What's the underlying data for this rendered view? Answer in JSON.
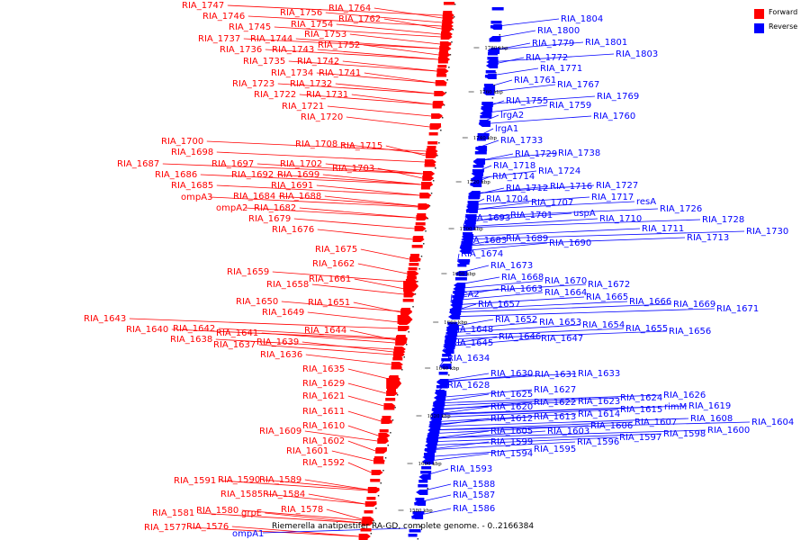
{
  "caption": "Riemerella anatipestifer RA-GD, complete genome. - 0..2166384",
  "legend": [
    {
      "label": "Forward",
      "color": "#ff0000"
    },
    {
      "label": "Reverse",
      "color": "#0000ff"
    }
  ],
  "colors": {
    "forward": "#ff0000",
    "reverse": "#0000ff",
    "backbone": "#888888"
  },
  "ticks": [
    "1780 kbp",
    "1760 kbp",
    "1740 kbp",
    "1720 kbp",
    "1700 kbp",
    "1680 kbp",
    "1660 kbp",
    "1640 kbp",
    "1620 kbp",
    "1600 kbp",
    "1580 kbp"
  ],
  "forward_genes": [
    "RIA_1747",
    "RIA_1764",
    "RIA_1756",
    "RIA_1746",
    "RIA_1762",
    "RIA_1754",
    "RIA_1745",
    "RIA_1753",
    "RIA_1737",
    "RIA_1744",
    "RIA_1752",
    "RIA_1736",
    "RIA_1743",
    "RIA_1735",
    "RIA_1742",
    "RIA_1734",
    "RIA_1741",
    "RIA_1723",
    "RIA_1732",
    "RIA_1722",
    "RIA_1731",
    "RIA_1721",
    "RIA_1720",
    "RIA_1700",
    "RIA_1708",
    "RIA_1715",
    "RIA_1698",
    "RIA_1687",
    "RIA_1697",
    "RIA_1702",
    "RIA_1703",
    "RIA_1686",
    "RIA_1692",
    "RIA_1699",
    "RIA_1685",
    "RIA_1691",
    "ompA3",
    "RIA_1684",
    "RIA_1688",
    "ompA2",
    "RIA_1682",
    "RIA_1679",
    "RIA_1676",
    "RIA_1675",
    "RIA_1662",
    "RIA_1659",
    "RIA_1661",
    "RIA_1658",
    "RIA_1650",
    "RIA_1651",
    "RIA_1649",
    "RIA_1643",
    "RIA_1640",
    "RIA_1642",
    "RIA_1644",
    "RIA_1641",
    "RIA_1638",
    "RIA_1639",
    "RIA_1637",
    "RIA_1636",
    "RIA_1635",
    "RIA_1629",
    "RIA_1621",
    "RIA_1611",
    "RIA_1610",
    "RIA_1609",
    "RIA_1602",
    "RIA_1601",
    "RIA_1592",
    "RIA_1591",
    "RIA_1590",
    "RIA_1589",
    "RIA_1585",
    "RIA_1584",
    "RIA_1580",
    "RIA_1578",
    "RIA_1581",
    "grpE",
    "RIA_1577",
    "RIA_1576"
  ],
  "reverse_genes": [
    "RIA_1804",
    "RIA_1800",
    "RIA_1801",
    "RIA_1779",
    "RIA_1803",
    "RIA_1772",
    "RIA_1771",
    "RIA_1761",
    "RIA_1767",
    "RIA_1769",
    "RIA_1755",
    "RIA_1759",
    "RIA_1760",
    "lrgA2",
    "lrgA1",
    "RIA_1733",
    "RIA_1729",
    "RIA_1738",
    "RIA_1718",
    "RIA_1724",
    "RIA_1714",
    "RIA_1716",
    "RIA_1727",
    "RIA_1712",
    "RIA_1717",
    "resA",
    "RIA_1704",
    "RIA_1707",
    "RIA_1726",
    "uspA",
    "RIA_1701",
    "RIA_1710",
    "RIA_1728",
    "RIA_1693",
    "RIA_1711",
    "RIA_1730",
    "RIA_1689",
    "RIA_1713",
    "RIA_1683",
    "RIA_1690",
    "RIA_1674",
    "RIA_1673",
    "RIA_1668",
    "RIA_1670",
    "RIA_1672",
    "RIA_1663",
    "RIA_1664",
    "RIA_1665",
    "RIA_1666",
    "RIA_1669",
    "recA2",
    "RIA_1671",
    "RIA_1657",
    "RIA_1652",
    "RIA_1653",
    "RIA_1654",
    "RIA_1655",
    "RIA_1656",
    "RIA_1648",
    "RIA_1646",
    "RIA_1647",
    "RIA_1645",
    "RIA_1634",
    "RIA_1630",
    "RIA_1631",
    "RIA_1633",
    "RIA_1628",
    "RIA_1627",
    "RIA_1625",
    "RIA_1622",
    "RIA_1623",
    "RIA_1624",
    "RIA_1626",
    "RIA_1620",
    "RIA_1615",
    "rimM",
    "RIA_1619",
    "RIA_1614",
    "RIA_1613",
    "RIA_1612",
    "RIA_1608",
    "RIA_1607",
    "RIA_1606",
    "RIA_1604",
    "RIA_1605",
    "RIA_1603",
    "RIA_1600",
    "RIA_1598",
    "RIA_1599",
    "RIA_1597",
    "RIA_1596",
    "RIA_1595",
    "RIA_1594",
    "RIA_1593",
    "RIA_1588",
    "RIA_1587",
    "RIA_1586",
    "ompA1"
  ]
}
